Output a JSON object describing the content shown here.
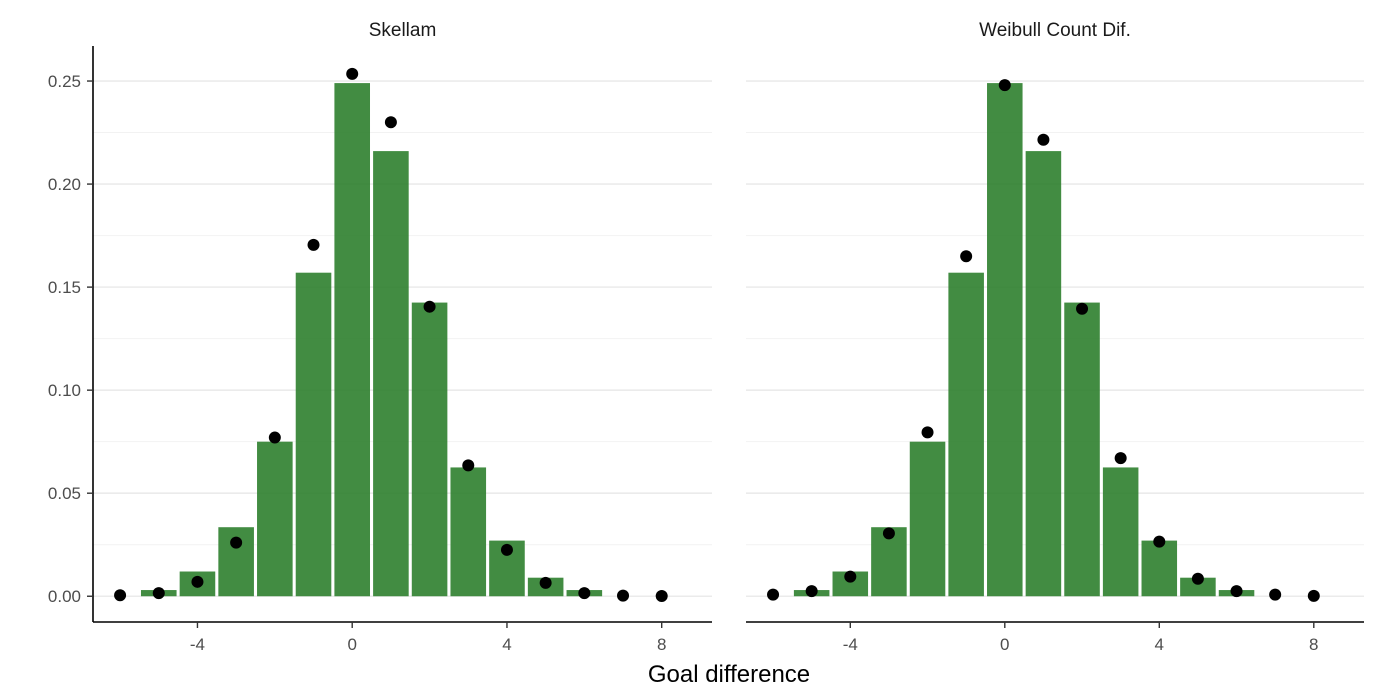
{
  "chart_data": {
    "type": "bar",
    "xlabel": "Goal difference",
    "ylabel": "",
    "x": [
      -6,
      -5,
      -4,
      -3,
      -2,
      -1,
      0,
      1,
      2,
      3,
      4,
      5,
      6,
      7,
      8
    ],
    "observed": [
      0.0,
      0.003,
      0.012,
      0.0335,
      0.075,
      0.157,
      0.249,
      0.216,
      0.1425,
      0.0625,
      0.027,
      0.009,
      0.003,
      0.0,
      0.0
    ],
    "xlim": [
      -6.7,
      9.3
    ],
    "ylim": [
      -0.0125,
      0.267
    ],
    "x_ticks": [
      -4,
      0,
      4,
      8
    ],
    "x_tick_labels": [
      "-4",
      "0",
      "4",
      "8"
    ],
    "y_ticks": [
      0.0,
      0.05,
      0.1,
      0.15,
      0.2,
      0.25
    ],
    "y_tick_labels": [
      "0.00",
      "0.05",
      "0.10",
      "0.15",
      "0.20",
      "0.25"
    ],
    "grid": true,
    "legend": "none",
    "bar_color": "#2d7f2d",
    "point_color": "#000000",
    "panels": [
      {
        "title": "Skellam",
        "predicted": [
          0.0005,
          0.0015,
          0.007,
          0.026,
          0.077,
          0.1705,
          0.2535,
          0.23,
          0.1405,
          0.0635,
          0.0225,
          0.0065,
          0.0015,
          0.0003,
          0.0001
        ]
      },
      {
        "title": "Weibull Count Dif.",
        "predicted": [
          0.0008,
          0.0025,
          0.0095,
          0.0305,
          0.0795,
          0.165,
          0.248,
          0.2215,
          0.1395,
          0.067,
          0.0265,
          0.0085,
          0.0025,
          0.0008,
          0.0002
        ]
      }
    ]
  }
}
